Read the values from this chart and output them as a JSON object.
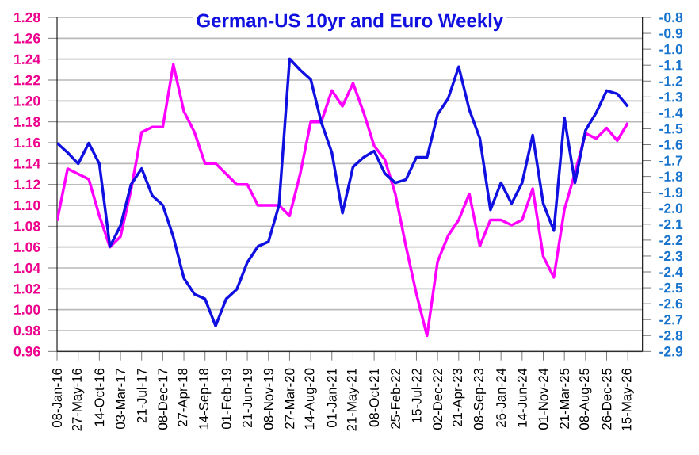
{
  "chart_data": {
    "type": "line",
    "title": "German-US 10yr and Euro Weekly",
    "x": [
      "2016-01-08",
      "2016-03-18",
      "2016-05-27",
      "2016-08-05",
      "2016-10-14",
      "2016-12-23",
      "2017-03-03",
      "2017-05-12",
      "2017-07-21",
      "2017-09-29",
      "2017-12-08",
      "2018-02-16",
      "2018-04-27",
      "2018-07-06",
      "2018-09-14",
      "2018-11-23",
      "2019-02-01",
      "2019-04-12",
      "2019-06-21",
      "2019-08-30",
      "2019-11-08",
      "2020-01-17",
      "2020-03-27",
      "2020-06-05",
      "2020-08-14",
      "2020-10-23",
      "2021-01-01",
      "2021-03-12",
      "2021-05-21",
      "2021-07-30",
      "2021-10-08",
      "2021-12-17",
      "2022-02-25",
      "2022-05-06",
      "2022-07-15",
      "2022-09-23",
      "2022-12-02",
      "2023-02-10",
      "2023-04-21",
      "2023-06-30",
      "2023-09-08",
      "2023-11-17",
      "2024-01-26",
      "2024-04-05",
      "2024-06-14",
      "2024-08-23",
      "2024-11-01",
      "2025-01-10",
      "2025-03-21",
      "2025-05-30",
      "2025-08-08",
      "2025-10-17",
      "2025-12-26",
      "2026-03-06",
      "2026-05-15"
    ],
    "series": [
      {
        "color": "#ff00ff",
        "values": [
          1.085,
          1.135,
          1.13,
          1.125,
          1.09,
          1.06,
          1.07,
          1.115,
          1.17,
          1.175,
          1.175,
          1.235,
          1.19,
          1.17,
          1.14,
          1.14,
          1.13,
          1.12,
          1.12,
          1.1,
          1.1,
          1.1,
          1.09,
          1.13,
          1.18,
          1.18,
          1.21,
          1.195,
          1.217,
          1.189,
          1.157,
          1.144,
          1.111,
          1.061,
          1.015,
          0.975,
          1.046,
          1.071,
          1.086,
          1.111,
          1.061,
          1.086,
          1.086,
          1.081,
          1.086,
          1.116,
          1.051,
          1.031,
          1.096,
          1.131,
          1.169,
          1.164,
          1.174,
          1.162,
          1.179
        ]
      },
      {
        "color": "#1010e0",
        "axis": "y2",
        "values": [
          -1.59,
          -1.65,
          -1.72,
          -1.59,
          -1.72,
          -2.24,
          -2.11,
          -1.85,
          -1.75,
          -1.92,
          -1.98,
          -2.18,
          -2.44,
          -2.54,
          -2.57,
          -2.74,
          -2.57,
          -2.51,
          -2.34,
          -2.24,
          -2.21,
          -1.98,
          -1.06,
          -1.13,
          -1.19,
          -1.46,
          -1.65,
          -2.03,
          -1.74,
          -1.68,
          -1.64,
          -1.78,
          -1.84,
          -1.82,
          -1.68,
          -1.68,
          -1.41,
          -1.31,
          -1.11,
          -1.38,
          -1.56,
          -2.01,
          -1.84,
          -1.97,
          -1.84,
          -1.54,
          -1.97,
          -2.14,
          -1.43,
          -1.84,
          -1.51,
          -1.4,
          -1.26,
          -1.28,
          -1.36
        ]
      }
    ],
    "xlim": [
      "2016-01-08",
      "2026-08-20"
    ],
    "xticks": [
      {
        "value": "2016-01-08",
        "label": "08-Jan-16"
      },
      {
        "value": "2016-05-27",
        "label": "27-May-16"
      },
      {
        "value": "2016-10-14",
        "label": "14-Oct-16"
      },
      {
        "value": "2017-03-03",
        "label": "03-Mar-17"
      },
      {
        "value": "2017-07-21",
        "label": "21-Jul-17"
      },
      {
        "value": "2017-12-08",
        "label": "08-Dec-17"
      },
      {
        "value": "2018-04-27",
        "label": "27-Apr-18"
      },
      {
        "value": "2018-09-14",
        "label": "14-Sep-18"
      },
      {
        "value": "2019-02-01",
        "label": "01-Feb-19"
      },
      {
        "value": "2019-06-21",
        "label": "21-Jun-19"
      },
      {
        "value": "2019-11-08",
        "label": "08-Nov-19"
      },
      {
        "value": "2020-03-27",
        "label": "27-Mar-20"
      },
      {
        "value": "2020-08-14",
        "label": "14-Aug-20"
      },
      {
        "value": "2021-01-01",
        "label": "01-Jan-21"
      },
      {
        "value": "2021-05-21",
        "label": "21-May-21"
      },
      {
        "value": "2021-10-08",
        "label": "08-Oct-21"
      },
      {
        "value": "2022-02-25",
        "label": "25-Feb-22"
      },
      {
        "value": "2022-07-15",
        "label": "15-Jul-22"
      },
      {
        "value": "2022-12-02",
        "label": "02-Dec-22"
      },
      {
        "value": "2023-04-21",
        "label": "21-Apr-23"
      },
      {
        "value": "2023-09-08",
        "label": "08-Sep-23"
      },
      {
        "value": "2024-01-26",
        "label": "26-Jan-24"
      },
      {
        "value": "2024-06-14",
        "label": "14-Jun-24"
      },
      {
        "value": "2024-11-01",
        "label": "01-Nov-24"
      },
      {
        "value": "2025-03-21",
        "label": "21-Mar-25"
      },
      {
        "value": "2025-08-08",
        "label": "08-Aug-25"
      },
      {
        "value": "2025-12-26",
        "label": "26-Dec-25"
      },
      {
        "value": "2026-05-15",
        "label": "15-May-26"
      }
    ],
    "ylim": [
      0.96,
      1.28
    ],
    "yticks": [
      {
        "value": 0.96,
        "label": "0.96"
      },
      {
        "value": 0.98,
        "label": "0.98"
      },
      {
        "value": 1.0,
        "label": "1.00"
      },
      {
        "value": 1.02,
        "label": "1.02"
      },
      {
        "value": 1.04,
        "label": "1.04"
      },
      {
        "value": 1.06,
        "label": "1.06"
      },
      {
        "value": 1.08,
        "label": "1.08"
      },
      {
        "value": 1.1,
        "label": "1.10"
      },
      {
        "value": 1.12,
        "label": "1.12"
      },
      {
        "value": 1.14,
        "label": "1.14"
      },
      {
        "value": 1.16,
        "label": "1.16"
      },
      {
        "value": 1.18,
        "label": "1.18"
      },
      {
        "value": 1.2,
        "label": "1.20"
      },
      {
        "value": 1.22,
        "label": "1.22"
      },
      {
        "value": 1.24,
        "label": "1.24"
      },
      {
        "value": 1.26,
        "label": "1.26"
      },
      {
        "value": 1.28,
        "label": "1.28"
      }
    ],
    "y2lim": [
      -2.9,
      -0.8
    ],
    "y2ticks": [
      {
        "value": -2.9,
        "label": "-2.9"
      },
      {
        "value": -2.8,
        "label": "-2.8"
      },
      {
        "value": -2.7,
        "label": "-2.7"
      },
      {
        "value": -2.6,
        "label": "-2.6"
      },
      {
        "value": -2.5,
        "label": "-2.5"
      },
      {
        "value": -2.4,
        "label": "-2.4"
      },
      {
        "value": -2.3,
        "label": "-2.3"
      },
      {
        "value": -2.2,
        "label": "-2.2"
      },
      {
        "value": -2.1,
        "label": "-2.1"
      },
      {
        "value": -2.0,
        "label": "-2.0"
      },
      {
        "value": -1.9,
        "label": "-1.9"
      },
      {
        "value": -1.8,
        "label": "-1.8"
      },
      {
        "value": -1.7,
        "label": "-1.7"
      },
      {
        "value": -1.6,
        "label": "-1.6"
      },
      {
        "value": -1.5,
        "label": "-1.5"
      },
      {
        "value": -1.4,
        "label": "-1.4"
      },
      {
        "value": -1.3,
        "label": "-1.3"
      },
      {
        "value": -1.2,
        "label": "-1.2"
      },
      {
        "value": -1.1,
        "label": "-1.1"
      },
      {
        "value": -1.0,
        "label": "-1.0"
      },
      {
        "value": -0.9,
        "label": "-0.9"
      },
      {
        "value": -0.8,
        "label": "-0.8"
      }
    ],
    "grid": "y"
  }
}
